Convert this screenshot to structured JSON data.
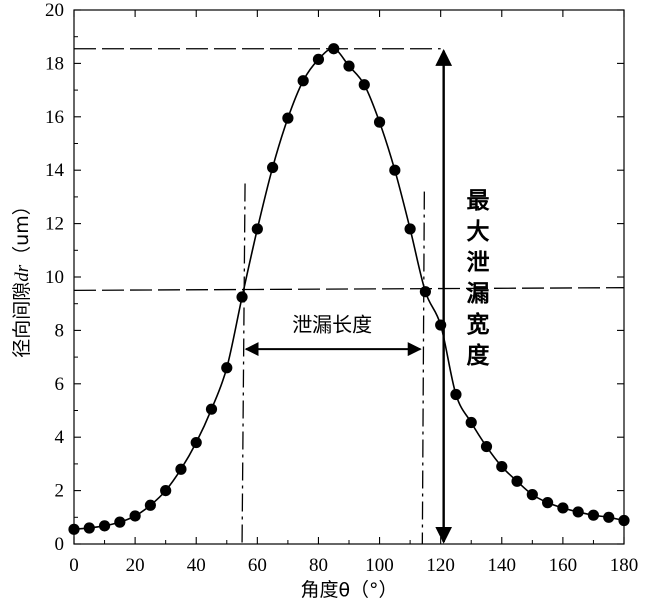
{
  "chart_data": {
    "type": "line",
    "xlabel": "角度θ（°）",
    "ylabel": "径向间隙dr（um）",
    "ylabel_parts": {
      "prefix": "径向间隙",
      "symbol": "dr",
      "suffix": "（um）"
    },
    "xlim": [
      0,
      180
    ],
    "ylim": [
      0,
      20
    ],
    "x_ticks": [
      0,
      20,
      40,
      60,
      80,
      100,
      120,
      140,
      160,
      180
    ],
    "y_ticks": [
      0,
      2,
      4,
      6,
      8,
      10,
      12,
      14,
      16,
      18,
      20
    ],
    "grid": false,
    "series": [
      {
        "x": [
          0,
          5,
          10,
          15,
          20,
          25,
          30,
          35,
          40,
          45,
          50,
          55,
          60,
          65,
          70,
          75,
          80,
          85,
          90,
          95,
          100,
          105,
          110,
          115,
          120,
          125,
          130,
          135,
          140,
          145,
          150,
          155,
          160,
          165,
          170,
          175,
          180
        ],
        "y": [
          0.55,
          0.6,
          0.68,
          0.82,
          1.05,
          1.45,
          2.0,
          2.8,
          3.8,
          5.05,
          6.6,
          9.25,
          11.8,
          14.1,
          15.95,
          17.35,
          18.15,
          18.55,
          17.9,
          17.2,
          15.8,
          14.0,
          11.8,
          9.45,
          8.2,
          5.6,
          4.55,
          3.65,
          2.9,
          2.35,
          1.85,
          1.55,
          1.35,
          1.2,
          1.08,
          1.0,
          0.88
        ]
      }
    ],
    "annotations": {
      "max_label_chars": [
        "最",
        "大",
        "泄",
        "漏",
        "宽",
        "度"
      ],
      "length_label": "泄漏长度",
      "max_level_y": 18.55,
      "half_level_y": 9.5,
      "left_cross_x": 55,
      "right_cross_x": 114,
      "max_arrow_x": 120
    }
  }
}
